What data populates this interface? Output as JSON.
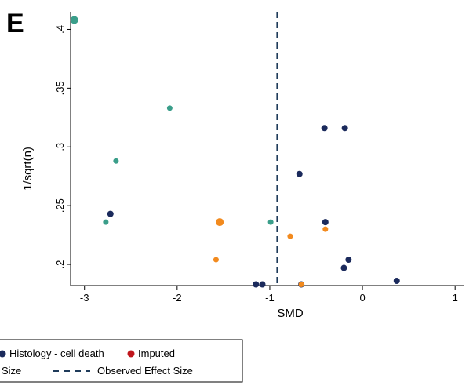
{
  "panel_label": "E",
  "colors": {
    "histology_cell_death": "#1b2a5c",
    "imputed": "#c0161c",
    "teal_series": "#3a9e8a",
    "orange_series": "#f28a1e",
    "observed_effect": "#1f3b5a"
  },
  "chart_data": {
    "type": "scatter",
    "title": "",
    "xlabel": "SMD",
    "ylabel": "1/sqrt(n)",
    "xlim": [
      -3.15,
      1.1
    ],
    "ylim": [
      0.182,
      0.415
    ],
    "x_ticks": [
      -3,
      -2,
      -1,
      0,
      1
    ],
    "x_tick_labels": [
      "-3",
      "-2",
      "-1",
      "0",
      "1"
    ],
    "y_ticks": [
      0.2,
      0.25,
      0.3,
      0.35,
      0.4
    ],
    "y_tick_labels": [
      ".2",
      ".25",
      ".3",
      ".35",
      ".4"
    ],
    "observed_effect_size": -0.92,
    "grid": false,
    "series": [
      {
        "key": "teal",
        "color": "#3a9e8a",
        "points": [
          {
            "x": -3.11,
            "y": 0.408,
            "size": 5
          },
          {
            "x": -2.08,
            "y": 0.333,
            "size": 3.5
          },
          {
            "x": -2.66,
            "y": 0.288,
            "size": 3.5
          },
          {
            "x": -2.77,
            "y": 0.236,
            "size": 3.5
          },
          {
            "x": -0.99,
            "y": 0.236,
            "size": 3.5
          }
        ]
      },
      {
        "key": "histology",
        "name": "Histology - cell death",
        "color": "#1b2a5c",
        "points": [
          {
            "x": -0.41,
            "y": 0.316,
            "size": 4
          },
          {
            "x": -0.19,
            "y": 0.316,
            "size": 4
          },
          {
            "x": -0.68,
            "y": 0.277,
            "size": 4
          },
          {
            "x": -2.72,
            "y": 0.243,
            "size": 4
          },
          {
            "x": -0.4,
            "y": 0.236,
            "size": 4
          },
          {
            "x": -0.15,
            "y": 0.204,
            "size": 4
          },
          {
            "x": -0.2,
            "y": 0.197,
            "size": 4
          },
          {
            "x": 0.37,
            "y": 0.186,
            "size": 4
          },
          {
            "x": -1.15,
            "y": 0.183,
            "size": 4
          },
          {
            "x": -1.08,
            "y": 0.183,
            "size": 4
          },
          {
            "x": -0.66,
            "y": 0.183,
            "size": 4
          }
        ]
      },
      {
        "key": "orange",
        "color": "#f28a1e",
        "points": [
          {
            "x": -1.54,
            "y": 0.236,
            "size": 5
          },
          {
            "x": -0.78,
            "y": 0.224,
            "size": 3.5
          },
          {
            "x": -0.4,
            "y": 0.23,
            "size": 3.5
          },
          {
            "x": -1.58,
            "y": 0.204,
            "size": 3.5
          },
          {
            "x": -0.66,
            "y": 0.183,
            "size": 3.5
          }
        ]
      }
    ],
    "legend": {
      "row1": [
        {
          "label": "Histology - cell death",
          "kind": "marker",
          "color": "#1b2a5c"
        },
        {
          "label": "Imputed",
          "kind": "marker",
          "color": "#c0161c"
        }
      ],
      "row2": [
        {
          "label": "Size",
          "kind": "text"
        },
        {
          "label": "Observed Effect Size",
          "kind": "dash",
          "color": "#1f3b5a"
        }
      ]
    }
  }
}
